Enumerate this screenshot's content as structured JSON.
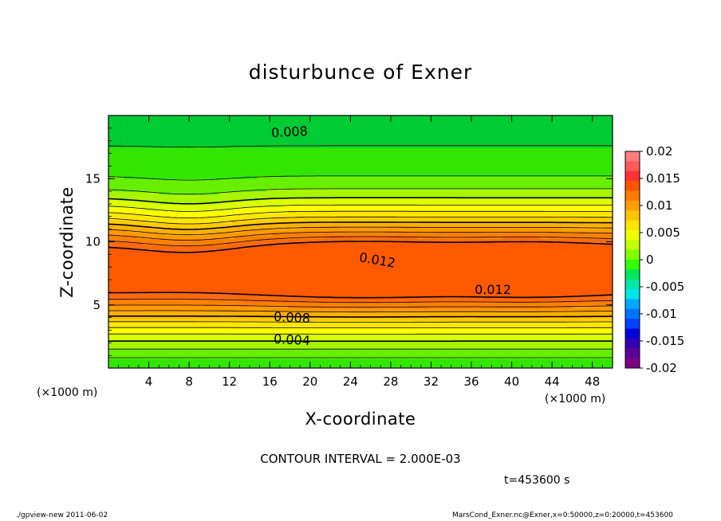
{
  "chart_data": {
    "type": "contour",
    "title": "disturbunce of Exner",
    "xlabel": "X-coordinate",
    "ylabel": "Z-coordinate",
    "x_unit": "(×1000 m)",
    "xlim": [
      0,
      50
    ],
    "ylim": [
      0,
      20
    ],
    "x_ticks": [
      "4",
      "8",
      "12",
      "16",
      "20",
      "24",
      "28",
      "32",
      "36",
      "40",
      "44",
      "48"
    ],
    "y_ticks": [
      "5",
      "10",
      "15"
    ],
    "contour_interval_text": "CONTOUR INTERVAL = 2.000E-03",
    "contour_labels": [
      "0.008",
      "0.012",
      "0.012",
      "0.008",
      "0.004"
    ],
    "colorbar": {
      "ticks": [
        "0.02",
        "0.015",
        "0.01",
        "0.005",
        "0",
        "-0.005",
        "-0.01",
        "-0.015",
        "-0.02"
      ],
      "colors": [
        "#ff7f7f",
        "#ff5a5a",
        "#ff3333",
        "#ff5500",
        "#ff7a00",
        "#ff9e00",
        "#ffc300",
        "#ffe600",
        "#f0ff00",
        "#c3ff00",
        "#80ff00",
        "#33ff00",
        "#00e65a",
        "#00e6a8",
        "#00e6e6",
        "#00a8ff",
        "#0073ff",
        "#0040ff",
        "#0000d9",
        "#3300b3",
        "#5a0099",
        "#7a0080"
      ]
    },
    "levels": [
      0.0,
      0.001,
      0.002,
      0.003,
      0.004,
      0.005,
      0.006,
      0.007,
      0.008,
      0.009,
      0.01,
      0.011,
      0.012
    ],
    "level_colors": [
      "#00cc33",
      "#33e600",
      "#66f000",
      "#a8f500",
      "#d9ff00",
      "#ffff00",
      "#ffe600",
      "#ffcc00",
      "#ffb000",
      "#ff9a00",
      "#ff8000",
      "#ff6a10",
      "#ff5a00"
    ]
  },
  "time_text": "t=453600 s",
  "footer": {
    "left": "./gpview-new   2011-06-02",
    "right": "MarsCond_Exner.nc@Exner,x=0:50000,z=0:20000,t=453600"
  }
}
